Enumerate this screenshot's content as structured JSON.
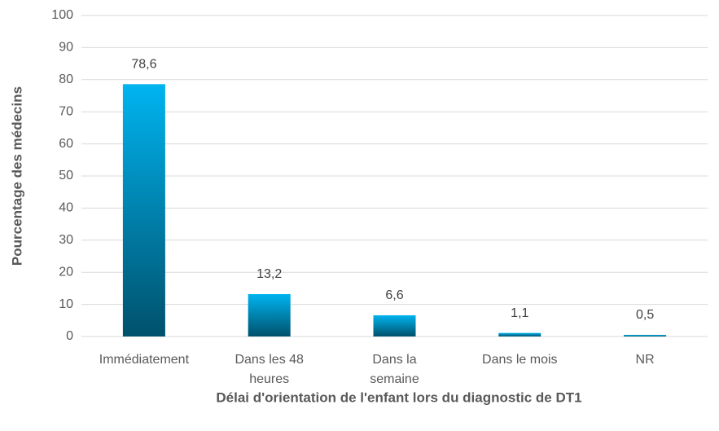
{
  "chart_data": {
    "type": "bar",
    "x_label": "Délai d'orientation de l'enfant lors du diagnostic de DT1",
    "y_label": "Pourcentage des médecins",
    "categories": [
      "Immédiatement",
      "Dans les 48 heures",
      "Dans la semaine",
      "Dans le mois",
      "NR"
    ],
    "values": [
      78.6,
      13.2,
      6.6,
      1.1,
      0.5
    ],
    "value_labels": [
      "78,6",
      "13,2",
      "6,6",
      "1,1",
      "0,5"
    ],
    "color": "#00b4f0",
    "ylim": [
      0,
      100
    ],
    "yticks": [
      0,
      10,
      20,
      30,
      40,
      50,
      60,
      70,
      80,
      90,
      100
    ],
    "grid": true
  }
}
